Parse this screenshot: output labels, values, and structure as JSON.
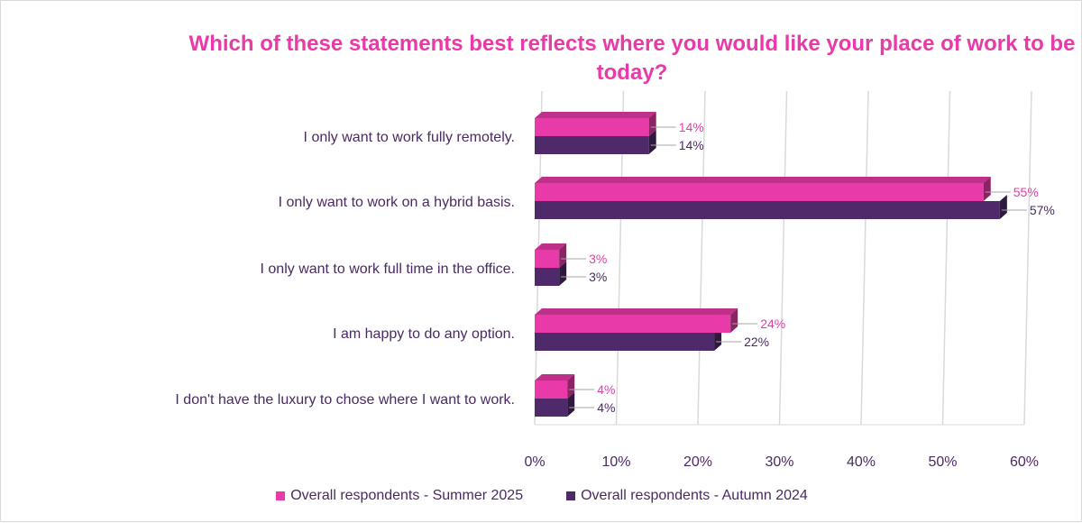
{
  "chart_data": {
    "type": "bar",
    "orientation": "horizontal",
    "title": "Which of these statements best reflects where you would like your place of work to be today?",
    "categories": [
      "I only want to work fully remotely.",
      "I only want to work on a hybrid basis.",
      "I only want to work full time in the office.",
      "I am happy to do any option.",
      "I don't have the luxury to chose where I want to work."
    ],
    "series": [
      {
        "name": "Overall respondents - Summer 2025",
        "color": "#e83aa8",
        "values": [
          14,
          55,
          3,
          24,
          4
        ],
        "labels": [
          "14%",
          "55%",
          "3%",
          "24%",
          "4%"
        ]
      },
      {
        "name": "Overall respondents - Autumn 2024",
        "color": "#4f2a6a",
        "values": [
          14,
          57,
          3,
          22,
          4
        ],
        "labels": [
          "14%",
          "57%",
          "3%",
          "22%",
          "4%"
        ]
      }
    ],
    "xlim": [
      0,
      60
    ],
    "xticks": [
      "0%",
      "10%",
      "20%",
      "30%",
      "40%",
      "50%",
      "60%"
    ],
    "grid": true,
    "legend_position": "bottom"
  }
}
